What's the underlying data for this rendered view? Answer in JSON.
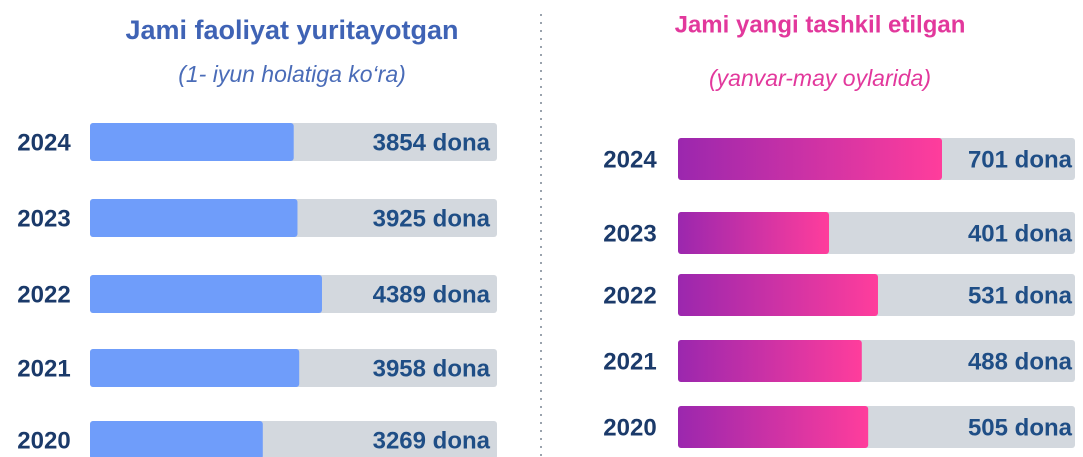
{
  "chart_data": [
    {
      "type": "bar",
      "title": "Jami faoliyat yuritayotgan",
      "subtitle": "(1- iyun holatiga  ko‘ra)",
      "categories": [
        "2024",
        "2023",
        "2022",
        "2021",
        "2020"
      ],
      "values": [
        3854,
        3925,
        4389,
        3958,
        3269
      ],
      "value_labels": [
        "3854 dona",
        "3925 dona",
        "4389 dona",
        "3958 dona",
        "3269 dona"
      ],
      "colors": [
        "#6f9dfa"
      ]
    },
    {
      "type": "bar",
      "title": "Jami yangi tashkil etilgan",
      "subtitle": "(yanvar-may oylarida)",
      "categories": [
        "2024",
        "2023",
        "2022",
        "2021",
        "2020"
      ],
      "values": [
        701,
        401,
        531,
        488,
        505
      ],
      "value_labels": [
        "701 dona",
        "401 dona",
        "531 dona",
        "488 dona",
        "505 dona"
      ],
      "colors": [
        "#9b27ae",
        "#ff3d9c"
      ]
    }
  ]
}
